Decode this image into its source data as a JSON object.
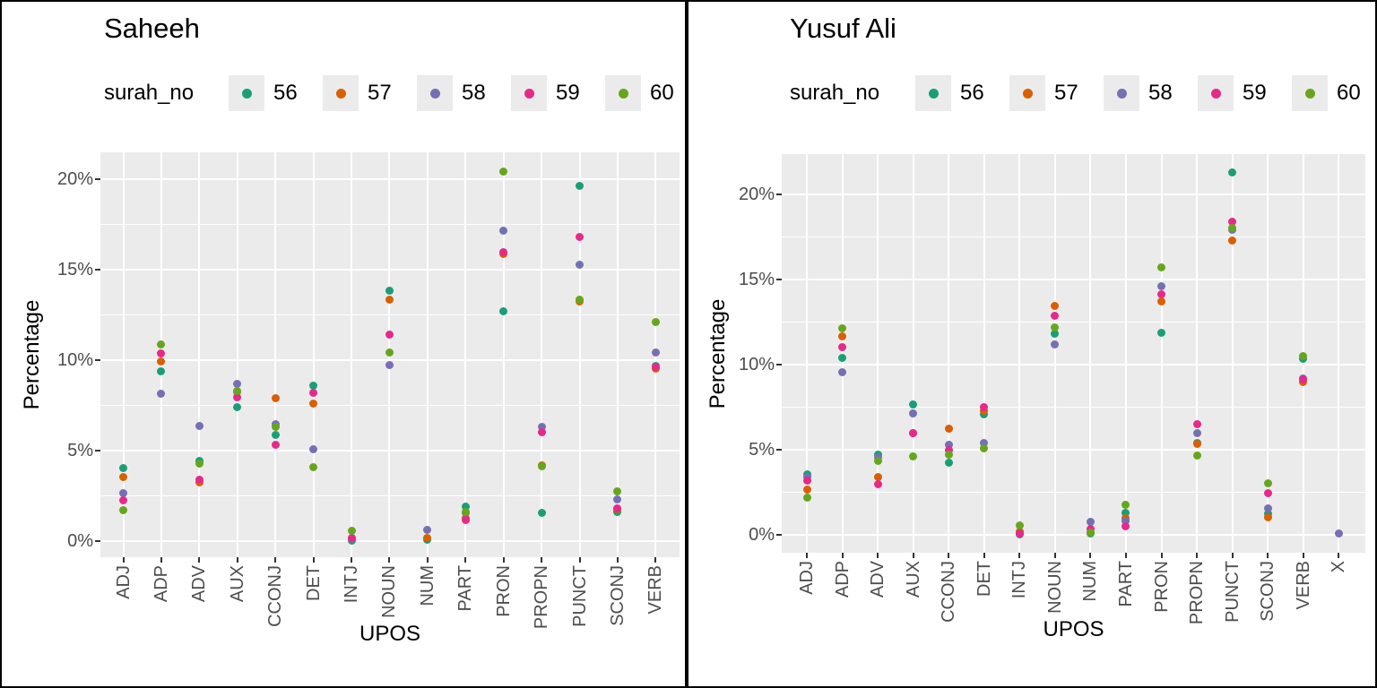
{
  "ui": {
    "background_color": "#FFFFFF",
    "panel_color": "#EBEBEB",
    "grid_color": "#FFFFFF",
    "tick_text_color": "#4D4D4D",
    "border_color": "#000000"
  },
  "chart_data": [
    {
      "type": "scatter",
      "title": "Saheeh",
      "legend_title": "surah_no",
      "legend_position": "top",
      "xlabel": "UPOS",
      "ylabel": "Percentage",
      "grid": "major-and-minor",
      "ylim": [
        0,
        21.5
      ],
      "y_tick_values": [
        0,
        5,
        10,
        15,
        20
      ],
      "y_tick_labels": [
        "0%",
        "5%",
        "10%",
        "15%",
        "20%"
      ],
      "y_minor_values": [
        2.5,
        7.5,
        12.5,
        17.5
      ],
      "categories": [
        "ADJ",
        "ADP",
        "ADV",
        "AUX",
        "CCONJ",
        "DET",
        "INTJ",
        "NOUN",
        "NUM",
        "PART",
        "PRON",
        "PROPN",
        "PUNCT",
        "SCONJ",
        "VERB"
      ],
      "series": [
        {
          "name": "56",
          "color": "#1B9E77",
          "values": [
            4.05,
            9.4,
            4.45,
            7.4,
            5.85,
            8.6,
            0.02,
            13.85,
            0.05,
            1.9,
            12.7,
            1.55,
            19.65,
            1.6,
            9.7
          ]
        },
        {
          "name": "57",
          "color": "#D95F02",
          "values": [
            3.55,
            9.95,
            3.25,
            8.25,
            7.9,
            7.6,
            0.1,
            13.35,
            0.15,
            1.25,
            15.85,
            4.2,
            13.25,
            1.75,
            9.55
          ]
        },
        {
          "name": "58",
          "color": "#7570B3",
          "values": [
            2.65,
            8.15,
            6.35,
            8.7,
            6.45,
            5.05,
            0.1,
            9.75,
            0.6,
            1.55,
            17.15,
            6.3,
            15.25,
            2.3,
            10.4
          ]
        },
        {
          "name": "59",
          "color": "#E7298A",
          "values": [
            2.25,
            10.35,
            3.4,
            7.95,
            5.3,
            8.2,
            0.15,
            11.4,
            null,
            1.15,
            15.95,
            6.0,
            16.8,
            1.8,
            9.65
          ]
        },
        {
          "name": "60",
          "color": "#66A61E",
          "values": [
            1.7,
            10.85,
            4.3,
            8.3,
            6.3,
            4.1,
            0.55,
            10.4,
            null,
            1.6,
            20.4,
            4.15,
            13.35,
            2.75,
            12.1
          ]
        }
      ]
    },
    {
      "type": "scatter",
      "title": "Yusuf Ali",
      "legend_title": "surah_no",
      "legend_position": "top",
      "xlabel": "UPOS",
      "ylabel": "Percentage",
      "grid": "major-and-minor",
      "ylim": [
        0,
        22.4
      ],
      "y_tick_values": [
        0,
        5,
        10,
        15,
        20
      ],
      "y_tick_labels": [
        "0%",
        "5%",
        "10%",
        "15%",
        "20%"
      ],
      "y_minor_values": [
        2.5,
        7.5,
        12.5,
        17.5
      ],
      "categories": [
        "ADJ",
        "ADP",
        "ADV",
        "AUX",
        "CCONJ",
        "DET",
        "INTJ",
        "NOUN",
        "NUM",
        "PART",
        "PRON",
        "PROPN",
        "PUNCT",
        "SCONJ",
        "VERB",
        "X"
      ],
      "series": [
        {
          "name": "56",
          "color": "#1B9E77",
          "values": [
            3.55,
            10.4,
            4.7,
            7.65,
            4.25,
            7.1,
            0.05,
            11.8,
            0.1,
            1.3,
            11.85,
            5.4,
            21.3,
            1.25,
            10.35,
            null
          ]
        },
        {
          "name": "57",
          "color": "#D95F02",
          "values": [
            2.65,
            11.65,
            3.4,
            6.0,
            6.25,
            7.3,
            0.2,
            13.45,
            0.15,
            0.95,
            13.7,
            5.35,
            17.3,
            1.05,
            9.0,
            null
          ]
        },
        {
          "name": "58",
          "color": "#7570B3",
          "values": [
            3.4,
            9.55,
            4.55,
            7.15,
            5.3,
            5.4,
            0.1,
            11.2,
            0.75,
            0.8,
            14.6,
            6.0,
            17.9,
            1.55,
            9.2,
            0.1
          ]
        },
        {
          "name": "59",
          "color": "#E7298A",
          "values": [
            3.2,
            11.05,
            3.0,
            5.95,
            4.95,
            7.5,
            0.1,
            12.85,
            0.35,
            0.5,
            14.15,
            6.5,
            18.4,
            2.45,
            9.15,
            null
          ]
        },
        {
          "name": "60",
          "color": "#66A61E",
          "values": [
            2.2,
            12.15,
            4.35,
            4.6,
            4.7,
            5.1,
            0.55,
            12.2,
            0.15,
            1.75,
            15.7,
            4.65,
            18.05,
            3.05,
            10.5,
            null
          ]
        }
      ]
    }
  ]
}
